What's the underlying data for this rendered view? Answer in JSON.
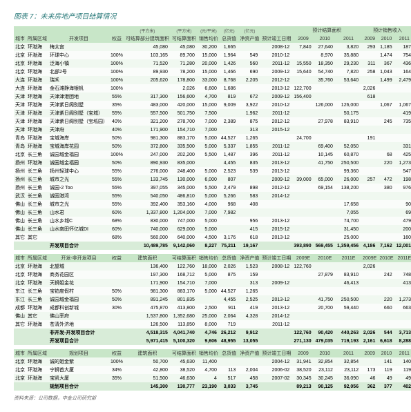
{
  "title": "图表 7：未来房地产项目结算情况",
  "source": "资料来源：公司数据，中金公司研究部",
  "groups": {
    "g1": "预计结算面积",
    "g2": "预计销售收入",
    "u1": "(万元)",
    "u2": "(平方米)",
    "u3": "(元/平米)",
    "u4": "(亿元)"
  },
  "cols1": [
    "城市",
    "所属区域",
    "开发项目",
    "权益",
    "可结算部分建筑面积",
    "可结算面积",
    "销售均价",
    "总货值",
    "净资产值",
    "预计竣工日期",
    "2009",
    "2010",
    "2011",
    "2009",
    "2010",
    "2011"
  ],
  "cols2": [
    "城市",
    "所属区域",
    "开发-非开发项目",
    "权益",
    "建筑面积",
    "可结算面积",
    "销售均价",
    "总货值",
    "净资产值",
    "预计竣工日期",
    "2009E",
    "2010E",
    "2011E",
    "2009E",
    "2010E",
    "2011E"
  ],
  "cols3": [
    "城市",
    "所属区域",
    "规划项目",
    "权益",
    "建筑面积",
    "可结算面积",
    "销售均价",
    "总货值",
    "净资产值",
    "预计竣工日期",
    "2009",
    "2010",
    "2011",
    "2009",
    "2010",
    "2011"
  ],
  "sec1": [
    [
      "北京",
      "环渤海",
      "梅太宫",
      "",
      "45,080",
      "45,080",
      "30,200",
      "1,665",
      "",
      "2008-12",
      "7,840",
      "27,640",
      "3,820",
      "293",
      "1,185",
      "187"
    ],
    [
      "北京",
      "环渤海",
      "环球中心",
      "100%",
      "103,165",
      "89,700",
      "15,000",
      "1,964",
      "549",
      "2010-12",
      "",
      "8,970",
      "35,880",
      "",
      "1,474",
      "754"
    ],
    [
      "北京",
      "环渤海",
      "泛海小镇",
      "100%",
      "71,520",
      "71,280",
      "20,000",
      "1,426",
      "560",
      "2011-12",
      "15,550",
      "18,350",
      "29,230",
      "311",
      "367",
      "436"
    ],
    [
      "北京",
      "环渤海",
      "北部2号",
      "100%",
      "89,930",
      "78,200",
      "15,000",
      "1,466",
      "690",
      "2009-12",
      "15,640",
      "54,740",
      "7,820",
      "258",
      "1,043",
      "164"
    ],
    [
      "大连",
      "环渤海",
      "瑞禾",
      "100%",
      "205,620",
      "178,800",
      "33,000",
      "8,768",
      "2,205",
      "2012-12",
      "",
      "35,760",
      "53,640",
      "",
      "1,499",
      "2,479"
    ],
    [
      "大连",
      "环渤海",
      "金石滩静海银帆",
      "100%",
      "",
      "2,026",
      "6,600",
      "1,686",
      "",
      "2013-12",
      "122,700",
      "",
      "",
      "2,026",
      "",
      ""
    ],
    [
      "天津",
      "环渤海",
      "天津津港团地",
      "55%",
      "317,300",
      "156,600",
      "4,700",
      "819",
      "672",
      "2009-12",
      "156,400",
      "",
      "",
      "618",
      "",
      ""
    ],
    [
      "天津",
      "环渤海",
      "天津紫日阁别墅",
      "35%",
      "483,000",
      "420,000",
      "15,000",
      "9,009",
      "3,922",
      "2010-12",
      "",
      "126,000",
      "126,000",
      "",
      "1,067",
      "1,067"
    ],
    [
      "天津",
      "环渤海",
      "天津紫日阁别墅（宝城）",
      "55%",
      "557,500",
      "501,750",
      "7,500",
      "",
      "1,962",
      "2011-12",
      "",
      "",
      "50,175",
      "",
      "",
      "419"
    ],
    [
      "天津",
      "环渤海",
      "天津紫日阁别墅（宝坻园）",
      "40%",
      "321,200",
      "278,700",
      "7,000",
      "2,389",
      "875",
      "2012-12",
      "",
      "27,978",
      "83,910",
      "",
      "245",
      "735"
    ],
    [
      "天津",
      "环渤海",
      "天津府",
      "40%",
      "171,900",
      "154,710",
      "7,000",
      "",
      "313",
      "2015-12",
      "",
      "",
      "",
      "",
      "",
      ""
    ],
    [
      "青岛",
      "环渤海",
      "宝城海岸",
      "50%",
      "981,300",
      "883,170",
      "5,000",
      "44,527",
      "1,265",
      "",
      "24,700",
      "",
      "",
      "191",
      "",
      ""
    ],
    [
      "青岛",
      "环渤海",
      "宝城海岸花园",
      "50%",
      "372,800",
      "335,500",
      "5,000",
      "5,337",
      "1,855",
      "2011-12",
      "",
      "69,400",
      "52,050",
      "",
      "",
      "331"
    ],
    [
      "北京",
      "长三角",
      "诚园城金福园",
      "100%",
      "247,000",
      "202,200",
      "5,500",
      "1,487",
      "396",
      "2011-12",
      "",
      "10,145",
      "60,870",
      "",
      "68",
      "425"
    ],
    [
      "扬州",
      "环渤海",
      "诚园城金福园",
      "50%",
      "890,930",
      "835,000",
      "",
      "4,455",
      "835",
      "2013-12",
      "",
      "41,750",
      "250,500",
      "",
      "220",
      "1,273"
    ],
    [
      "扬州",
      "长三角",
      "扬州轻球中心",
      "55%",
      "276,000",
      "248,400",
      "5,000",
      "2,523",
      "539",
      "2013-12",
      "",
      "",
      "99,360",
      "",
      "",
      "547"
    ],
    [
      "扬州",
      "长三角",
      "城市之光",
      "55%",
      "133,745",
      "130,000",
      "6,000",
      "807",
      "",
      "2009-12",
      "39,000",
      "65,000",
      "26,000",
      "257",
      "472",
      "198"
    ],
    [
      "扬州",
      "长三角",
      "诚园-2 Too",
      "55%",
      "397,055",
      "345,000",
      "5,500",
      "2,479",
      "898",
      "2012-12",
      "",
      "69,154",
      "138,200",
      "",
      "380",
      "976"
    ],
    [
      "武汉",
      "长三角",
      "诚园港湾",
      "55%",
      "540,050",
      "486,810",
      "5,000",
      "5,266",
      "583",
      "2014-12",
      "",
      "",
      "",
      "",
      "",
      ""
    ],
    [
      "佛山",
      "长三角",
      "城市之光",
      "55%",
      "392,400",
      "353,160",
      "4,000",
      "968",
      "408",
      "",
      "",
      "",
      "17,658",
      "",
      "",
      "90"
    ],
    [
      "佛山",
      "长三角",
      "山水君",
      "60%",
      "1,337,800",
      "1,204,000",
      "7,000",
      "7,982",
      "",
      "",
      "",
      "",
      "7,055",
      "",
      "",
      "69"
    ],
    [
      "佛山",
      "长三角",
      "山水乡城C",
      "68%",
      "830,000",
      "747,000",
      "5,000",
      "",
      "956",
      "2013-12",
      "",
      "",
      "74,700",
      "",
      "",
      "479"
    ],
    [
      "佛山",
      "长三角",
      "山水南田怀亿城DI",
      "60%",
      "740,000",
      "629,000",
      "5,000",
      "",
      "415",
      "2015-12",
      "",
      "",
      "31,450",
      "",
      "",
      "200"
    ],
    [
      "其它",
      "其它",
      "",
      "68%",
      "560,000",
      "640,000",
      "4,500",
      "3,176",
      "618",
      "2013-12",
      "",
      "",
      "25,000",
      "",
      "",
      "160"
    ]
  ],
  "sub1": [
    "",
    "",
    "开发项目合计",
    "",
    "10,489,785",
    "9,142,060",
    "8,227",
    "75,211",
    "19,167",
    "",
    "393,890",
    "569,455",
    "1,359,456",
    "4,186",
    "7,162",
    "12,001"
  ],
  "sec2": [
    [
      "北京",
      "环渤海",
      "北望城",
      "",
      "136,400",
      "122,760",
      "18,000",
      "2,026",
      "1,523",
      "2008-12",
      "122,760",
      "",
      "",
      "2,026",
      "",
      ""
    ],
    [
      "北京",
      "环渤海",
      "商务花园区",
      "",
      "197,300",
      "168,712",
      "5,000",
      "875",
      "159",
      "",
      "",
      "27,879",
      "83,910",
      "",
      "242",
      "748"
    ],
    [
      "北京",
      "环渤海",
      "天狮姐金花",
      "",
      "171,900",
      "154,710",
      "7,000",
      "",
      "313",
      "2009-12",
      "",
      "",
      "46,413",
      "",
      "",
      "413"
    ],
    [
      "东江",
      "长三角",
      "宝铂度假村",
      "50%",
      "981,300",
      "883,170",
      "5,000",
      "44,527",
      "1,265",
      "",
      "",
      "",
      "",
      "",
      "",
      ""
    ],
    [
      "东江",
      "长三角",
      "诚园城金福园",
      "50%",
      "891,245",
      "801,835",
      "",
      "4,455",
      "2,525",
      "2013-12",
      "",
      "41,750",
      "250,500",
      "",
      "220",
      "1,273"
    ],
    [
      "成都",
      "环渤海",
      "成都科创新城",
      "30%",
      "475,870",
      "413,800",
      "2,500",
      "911",
      "419",
      "2013-12",
      "",
      "20,700",
      "59,440",
      "",
      "660",
      "663"
    ],
    [
      "佛山",
      "其它",
      "佛山率府",
      "",
      "1,537,800",
      "1,352,680",
      "25,000",
      "2,064",
      "4,328",
      "2014-12",
      "",
      "",
      "",
      "",
      "",
      ""
    ],
    [
      "其它",
      "环渤海",
      "苍清外济地",
      "",
      "126,500",
      "113,850",
      "8,000",
      "719",
      "",
      "2011-12",
      "",
      "",
      "",
      "",
      "",
      ""
    ]
  ],
  "sub2": [
    "",
    "",
    "非开发-开发项目合计",
    "",
    "4,518,315",
    "4,041,740",
    "4,746",
    "26,212",
    "9,912",
    "",
    "122,760",
    "90,420",
    "440,263",
    "2,026",
    "544",
    "3,713"
  ],
  "sub2b": [
    "",
    "",
    "开发项目合计",
    "",
    "5,971,415",
    "5,100,320",
    "9,606",
    "48,955",
    "13,055",
    "",
    "271,130",
    "479,035",
    "719,193",
    "2,161",
    "6,618",
    "8,288"
  ],
  "sec3": [
    [
      "北京",
      "环渤海",
      "诚的姐金紫",
      "100%",
      "50,700",
      "45,630",
      "11,400",
      "",
      "",
      "2004-12",
      "31,941",
      "32,854",
      "32,854",
      "",
      "141",
      "140"
    ],
    [
      "北京",
      "环渤海",
      "宁狮首大厦",
      "34%",
      "42,800",
      "38,520",
      "4,700",
      "113",
      "2,004",
      "2006-02",
      "38,520",
      "23,112",
      "23,112",
      "173",
      "119",
      "119"
    ],
    [
      "北京",
      "环渤海",
      "宝凯大厦",
      "35%",
      "51,500",
      "46,630",
      "4",
      "517",
      "458",
      "2007-02",
      "30,345",
      "30,245",
      "36,090",
      "46",
      "49",
      "49"
    ]
  ],
  "sub3": [
    "",
    "",
    "规划项目合计",
    "",
    "145,300",
    "130,777",
    "23,190",
    "3,033",
    "3,745",
    "",
    "89,213",
    "90,125",
    "92,056",
    "362",
    "377",
    "402"
  ]
}
